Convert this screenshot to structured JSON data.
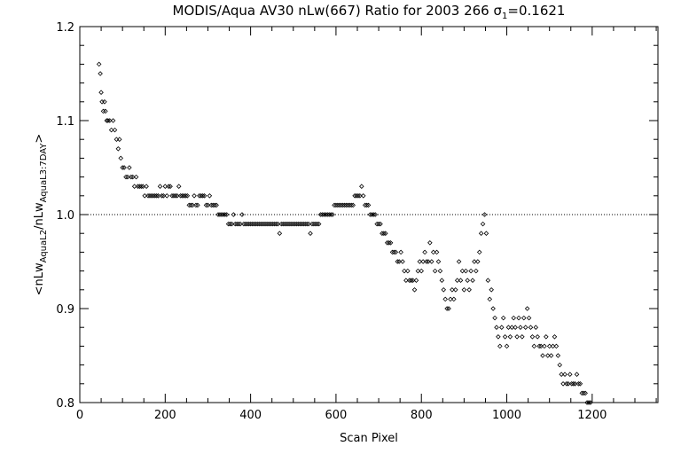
{
  "chart_data": {
    "type": "scatter",
    "title_parts": {
      "main": "MODIS/Aqua AV30 nLw(667) Ratio for 2003 266 ",
      "sigma": "σ",
      "sigma_sub": "1",
      "sigma_value": "=0.1621"
    },
    "xlabel": "Scan Pixel",
    "ylabel_parts": {
      "lead": "<nLw",
      "sub1": "AquaL2",
      "mid": "/nLw",
      "sub2": "AquaL3:7DAY",
      "tail": ">"
    },
    "xlim": [
      0,
      1354
    ],
    "ylim": [
      0.8,
      1.2
    ],
    "x_ticks": [
      0,
      200,
      400,
      600,
      800,
      1000,
      1200
    ],
    "x_tick_labels": [
      "0",
      "200",
      "400",
      "600",
      "800",
      "1000",
      "1200"
    ],
    "y_ticks": [
      0.8,
      0.9,
      1.0,
      1.1,
      1.2
    ],
    "y_tick_labels": [
      "0.8",
      "0.9",
      "1.0",
      "1.1",
      "1.2"
    ],
    "reference_line": {
      "y": 1.0,
      "style": "dotted"
    },
    "marker": "diamond",
    "series": [
      {
        "points": [
          [
            45,
            1.16
          ],
          [
            48,
            1.15
          ],
          [
            50,
            1.13
          ],
          [
            52,
            1.12
          ],
          [
            55,
            1.11
          ],
          [
            58,
            1.12
          ],
          [
            60,
            1.11
          ],
          [
            63,
            1.1
          ],
          [
            66,
            1.1
          ],
          [
            70,
            1.1
          ],
          [
            74,
            1.09
          ],
          [
            78,
            1.1
          ],
          [
            82,
            1.09
          ],
          [
            86,
            1.08
          ],
          [
            90,
            1.07
          ],
          [
            93,
            1.08
          ],
          [
            96,
            1.06
          ],
          [
            100,
            1.05
          ],
          [
            104,
            1.05
          ],
          [
            108,
            1.04
          ],
          [
            112,
            1.04
          ],
          [
            116,
            1.05
          ],
          [
            120,
            1.04
          ],
          [
            124,
            1.04
          ],
          [
            128,
            1.03
          ],
          [
            132,
            1.04
          ],
          [
            136,
            1.03
          ],
          [
            140,
            1.03
          ],
          [
            144,
            1.03
          ],
          [
            148,
            1.03
          ],
          [
            152,
            1.02
          ],
          [
            156,
            1.03
          ],
          [
            160,
            1.02
          ],
          [
            164,
            1.02
          ],
          [
            168,
            1.02
          ],
          [
            172,
            1.02
          ],
          [
            176,
            1.02
          ],
          [
            180,
            1.02
          ],
          [
            184,
            1.02
          ],
          [
            188,
            1.03
          ],
          [
            192,
            1.02
          ],
          [
            196,
            1.02
          ],
          [
            200,
            1.03
          ],
          [
            204,
            1.02
          ],
          [
            208,
            1.03
          ],
          [
            212,
            1.03
          ],
          [
            216,
            1.02
          ],
          [
            220,
            1.02
          ],
          [
            224,
            1.02
          ],
          [
            228,
            1.02
          ],
          [
            232,
            1.03
          ],
          [
            236,
            1.02
          ],
          [
            240,
            1.02
          ],
          [
            244,
            1.02
          ],
          [
            248,
            1.02
          ],
          [
            252,
            1.02
          ],
          [
            256,
            1.01
          ],
          [
            260,
            1.01
          ],
          [
            264,
            1.01
          ],
          [
            268,
            1.02
          ],
          [
            272,
            1.01
          ],
          [
            276,
            1.01
          ],
          [
            280,
            1.02
          ],
          [
            284,
            1.02
          ],
          [
            288,
            1.02
          ],
          [
            292,
            1.02
          ],
          [
            296,
            1.01
          ],
          [
            300,
            1.01
          ],
          [
            304,
            1.02
          ],
          [
            308,
            1.01
          ],
          [
            312,
            1.01
          ],
          [
            316,
            1.01
          ],
          [
            320,
            1.01
          ],
          [
            324,
            1.0
          ],
          [
            328,
            1.0
          ],
          [
            332,
            1.0
          ],
          [
            336,
            1.0
          ],
          [
            340,
            1.0
          ],
          [
            344,
            1.0
          ],
          [
            348,
            0.99
          ],
          [
            352,
            0.99
          ],
          [
            356,
            0.99
          ],
          [
            360,
            1.0
          ],
          [
            364,
            0.99
          ],
          [
            368,
            0.99
          ],
          [
            372,
            0.99
          ],
          [
            376,
            0.99
          ],
          [
            380,
            1.0
          ],
          [
            384,
            0.99
          ],
          [
            388,
            0.99
          ],
          [
            392,
            0.99
          ],
          [
            396,
            0.99
          ],
          [
            400,
            0.99
          ],
          [
            404,
            0.99
          ],
          [
            408,
            0.99
          ],
          [
            412,
            0.99
          ],
          [
            416,
            0.99
          ],
          [
            420,
            0.99
          ],
          [
            424,
            0.99
          ],
          [
            428,
            0.99
          ],
          [
            432,
            0.99
          ],
          [
            436,
            0.99
          ],
          [
            440,
            0.99
          ],
          [
            444,
            0.99
          ],
          [
            448,
            0.99
          ],
          [
            452,
            0.99
          ],
          [
            456,
            0.99
          ],
          [
            460,
            0.99
          ],
          [
            464,
            0.99
          ],
          [
            468,
            0.98
          ],
          [
            472,
            0.99
          ],
          [
            476,
            0.99
          ],
          [
            480,
            0.99
          ],
          [
            484,
            0.99
          ],
          [
            488,
            0.99
          ],
          [
            492,
            0.99
          ],
          [
            496,
            0.99
          ],
          [
            500,
            0.99
          ],
          [
            504,
            0.99
          ],
          [
            508,
            0.99
          ],
          [
            512,
            0.99
          ],
          [
            516,
            0.99
          ],
          [
            520,
            0.99
          ],
          [
            524,
            0.99
          ],
          [
            528,
            0.99
          ],
          [
            532,
            0.99
          ],
          [
            536,
            0.99
          ],
          [
            540,
            0.98
          ],
          [
            544,
            0.99
          ],
          [
            548,
            0.99
          ],
          [
            552,
            0.99
          ],
          [
            556,
            0.99
          ],
          [
            560,
            0.99
          ],
          [
            564,
            1.0
          ],
          [
            568,
            1.0
          ],
          [
            572,
            1.0
          ],
          [
            576,
            1.0
          ],
          [
            580,
            1.0
          ],
          [
            584,
            1.0
          ],
          [
            588,
            1.0
          ],
          [
            592,
            1.0
          ],
          [
            596,
            1.01
          ],
          [
            600,
            1.01
          ],
          [
            604,
            1.01
          ],
          [
            608,
            1.01
          ],
          [
            612,
            1.01
          ],
          [
            616,
            1.01
          ],
          [
            620,
            1.01
          ],
          [
            624,
            1.01
          ],
          [
            628,
            1.01
          ],
          [
            632,
            1.01
          ],
          [
            636,
            1.01
          ],
          [
            640,
            1.01
          ],
          [
            644,
            1.02
          ],
          [
            648,
            1.02
          ],
          [
            652,
            1.02
          ],
          [
            656,
            1.02
          ],
          [
            660,
            1.03
          ],
          [
            664,
            1.02
          ],
          [
            668,
            1.01
          ],
          [
            672,
            1.01
          ],
          [
            676,
            1.01
          ],
          [
            680,
            1.0
          ],
          [
            684,
            1.0
          ],
          [
            688,
            1.0
          ],
          [
            692,
            1.0
          ],
          [
            696,
            0.99
          ],
          [
            700,
            0.99
          ],
          [
            704,
            0.99
          ],
          [
            708,
            0.98
          ],
          [
            712,
            0.98
          ],
          [
            716,
            0.98
          ],
          [
            720,
            0.97
          ],
          [
            724,
            0.97
          ],
          [
            728,
            0.97
          ],
          [
            732,
            0.96
          ],
          [
            736,
            0.96
          ],
          [
            740,
            0.96
          ],
          [
            744,
            0.95
          ],
          [
            748,
            0.95
          ],
          [
            752,
            0.96
          ],
          [
            756,
            0.95
          ],
          [
            760,
            0.94
          ],
          [
            764,
            0.93
          ],
          [
            768,
            0.94
          ],
          [
            772,
            0.93
          ],
          [
            776,
            0.93
          ],
          [
            780,
            0.93
          ],
          [
            784,
            0.92
          ],
          [
            788,
            0.93
          ],
          [
            792,
            0.94
          ],
          [
            796,
            0.95
          ],
          [
            800,
            0.94
          ],
          [
            804,
            0.95
          ],
          [
            808,
            0.96
          ],
          [
            812,
            0.95
          ],
          [
            816,
            0.95
          ],
          [
            820,
            0.97
          ],
          [
            824,
            0.95
          ],
          [
            828,
            0.96
          ],
          [
            832,
            0.94
          ],
          [
            836,
            0.96
          ],
          [
            840,
            0.95
          ],
          [
            844,
            0.94
          ],
          [
            848,
            0.93
          ],
          [
            852,
            0.92
          ],
          [
            856,
            0.91
          ],
          [
            860,
            0.9
          ],
          [
            864,
            0.9
          ],
          [
            868,
            0.91
          ],
          [
            872,
            0.92
          ],
          [
            876,
            0.91
          ],
          [
            880,
            0.92
          ],
          [
            884,
            0.93
          ],
          [
            888,
            0.95
          ],
          [
            892,
            0.93
          ],
          [
            896,
            0.94
          ],
          [
            900,
            0.92
          ],
          [
            904,
            0.94
          ],
          [
            908,
            0.93
          ],
          [
            912,
            0.92
          ],
          [
            916,
            0.94
          ],
          [
            920,
            0.93
          ],
          [
            924,
            0.95
          ],
          [
            928,
            0.94
          ],
          [
            932,
            0.95
          ],
          [
            936,
            0.96
          ],
          [
            940,
            0.98
          ],
          [
            944,
            0.99
          ],
          [
            948,
            1.0
          ],
          [
            952,
            0.98
          ],
          [
            956,
            0.93
          ],
          [
            960,
            0.91
          ],
          [
            964,
            0.92
          ],
          [
            968,
            0.9
          ],
          [
            972,
            0.89
          ],
          [
            976,
            0.88
          ],
          [
            980,
            0.87
          ],
          [
            984,
            0.86
          ],
          [
            988,
            0.88
          ],
          [
            992,
            0.89
          ],
          [
            996,
            0.87
          ],
          [
            1000,
            0.86
          ],
          [
            1004,
            0.88
          ],
          [
            1008,
            0.87
          ],
          [
            1012,
            0.88
          ],
          [
            1016,
            0.89
          ],
          [
            1020,
            0.88
          ],
          [
            1024,
            0.87
          ],
          [
            1028,
            0.89
          ],
          [
            1032,
            0.88
          ],
          [
            1036,
            0.87
          ],
          [
            1040,
            0.89
          ],
          [
            1044,
            0.88
          ],
          [
            1048,
            0.9
          ],
          [
            1052,
            0.89
          ],
          [
            1056,
            0.88
          ],
          [
            1060,
            0.87
          ],
          [
            1064,
            0.86
          ],
          [
            1068,
            0.88
          ],
          [
            1072,
            0.87
          ],
          [
            1076,
            0.86
          ],
          [
            1080,
            0.86
          ],
          [
            1084,
            0.85
          ],
          [
            1088,
            0.86
          ],
          [
            1092,
            0.87
          ],
          [
            1096,
            0.85
          ],
          [
            1100,
            0.86
          ],
          [
            1104,
            0.85
          ],
          [
            1108,
            0.86
          ],
          [
            1112,
            0.87
          ],
          [
            1116,
            0.86
          ],
          [
            1120,
            0.85
          ],
          [
            1124,
            0.84
          ],
          [
            1128,
            0.83
          ],
          [
            1132,
            0.82
          ],
          [
            1136,
            0.83
          ],
          [
            1140,
            0.82
          ],
          [
            1144,
            0.82
          ],
          [
            1148,
            0.83
          ],
          [
            1152,
            0.82
          ],
          [
            1156,
            0.82
          ],
          [
            1160,
            0.82
          ],
          [
            1164,
            0.83
          ],
          [
            1168,
            0.82
          ],
          [
            1172,
            0.82
          ],
          [
            1176,
            0.81
          ],
          [
            1180,
            0.81
          ],
          [
            1184,
            0.81
          ],
          [
            1188,
            0.8
          ],
          [
            1192,
            0.8
          ],
          [
            1196,
            0.8
          ]
        ]
      }
    ],
    "grid": false,
    "legend": "none"
  }
}
